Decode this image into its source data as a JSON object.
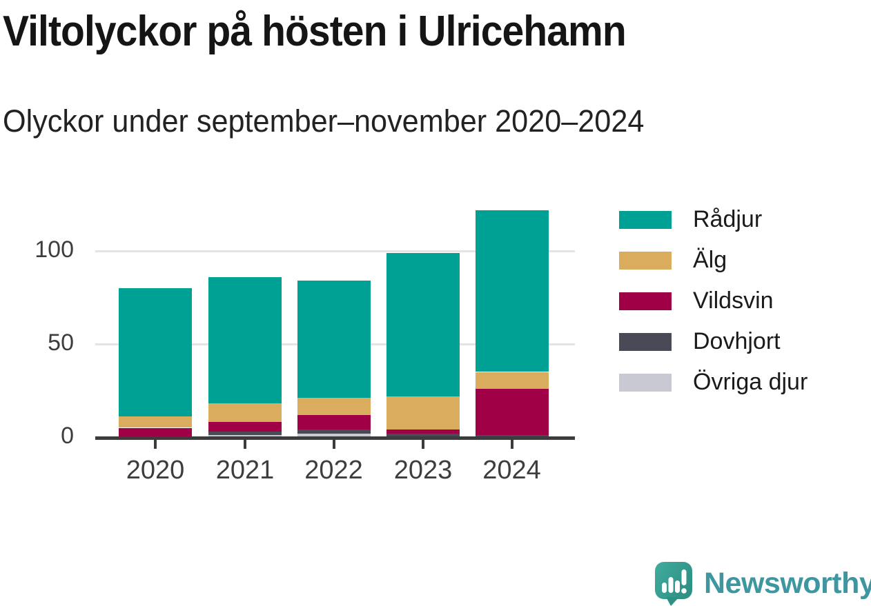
{
  "header": {
    "title": "Viltolyckor på hösten i Ulricehamn",
    "subtitle": "Olyckor under september–november 2020–2024"
  },
  "chart_data": {
    "type": "bar",
    "stacked": true,
    "title": "Viltolyckor på hösten i Ulricehamn",
    "subtitle": "Olyckor under september–november 2020–2024",
    "categories": [
      "2020",
      "2021",
      "2022",
      "2023",
      "2024"
    ],
    "series": [
      {
        "name": "Rådjur",
        "color": "#00a195",
        "values": [
          69,
          68,
          63,
          77,
          87
        ]
      },
      {
        "name": "Älg",
        "color": "#d9ac5e",
        "values": [
          6,
          10,
          9,
          18,
          9
        ]
      },
      {
        "name": "Vildsvin",
        "color": "#a00045",
        "values": [
          5,
          5,
          8,
          2,
          25
        ]
      },
      {
        "name": "Dovhjort",
        "color": "#4a4a57",
        "values": [
          0,
          2,
          2,
          2,
          1
        ]
      },
      {
        "name": "Övriga djur",
        "color": "#c9c9d3",
        "values": [
          0,
          1,
          2,
          0,
          0
        ]
      }
    ],
    "totals": [
      80,
      86,
      84,
      99,
      122
    ],
    "yticks": [
      0,
      50,
      100
    ],
    "ylim": [
      0,
      125
    ],
    "xlabel": "",
    "ylabel": "",
    "grid": "horizontal",
    "legend_position": "right",
    "axis_color": "#3c3c3c",
    "gridline_color": "#e4e4e4"
  },
  "logo": {
    "text": "Newsworthy",
    "icon": "speech-bubble-bar-chart",
    "text_color": "#3e96a0",
    "bubble_color": "#38a294"
  }
}
